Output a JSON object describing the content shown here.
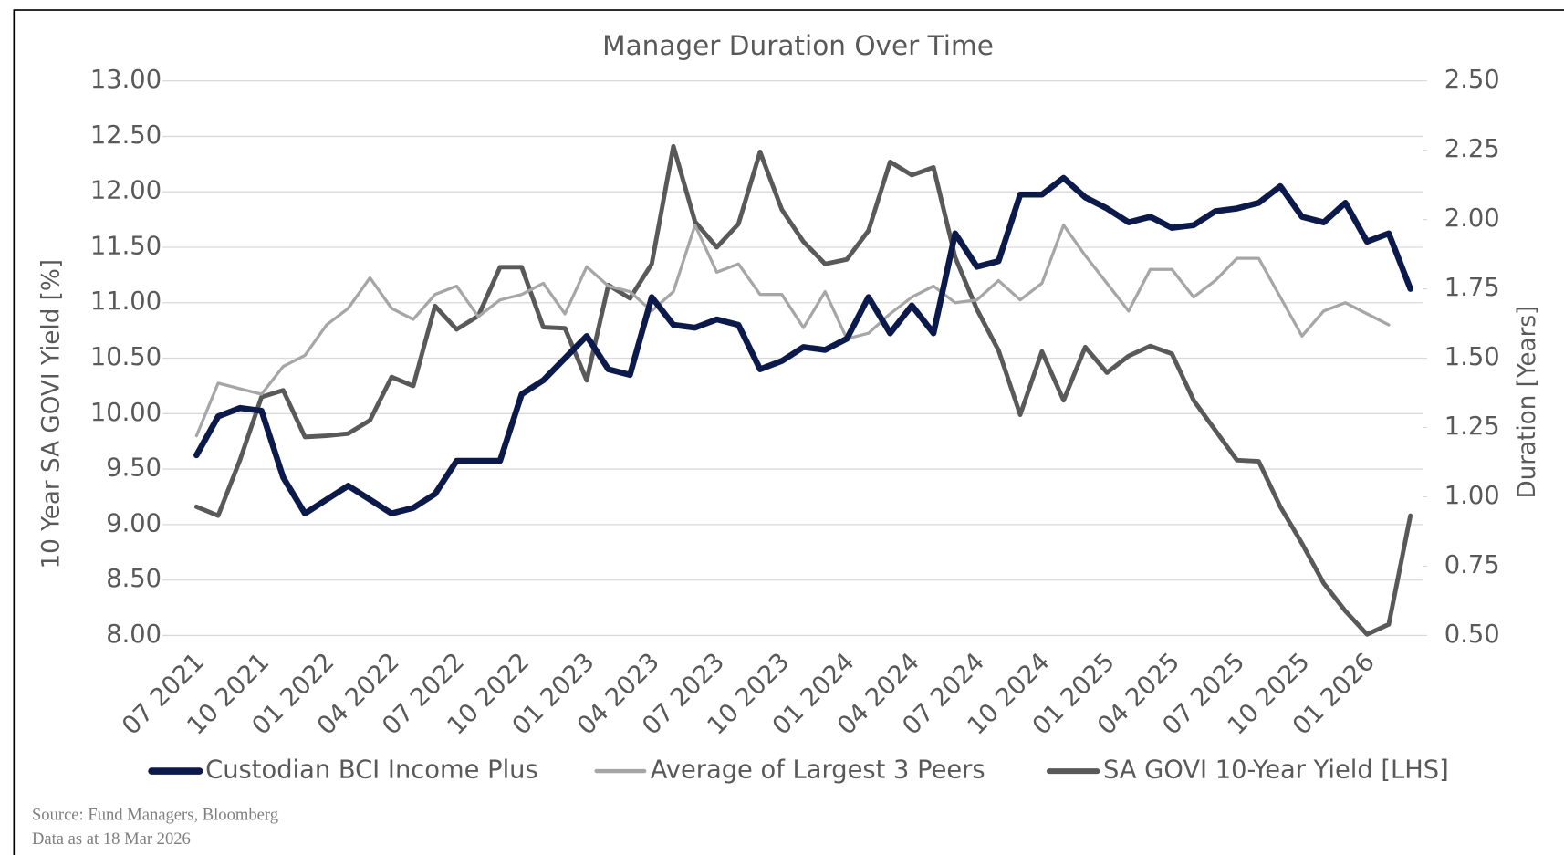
{
  "chart_data": {
    "type": "line",
    "title": "Manager Duration Over Time",
    "y_label": "10 Year SA GOVI Yield [%]",
    "y2_label": "Duration [Years]",
    "categories": [
      "07 2021",
      null,
      null,
      "10 2021",
      null,
      null,
      "01 2022",
      null,
      null,
      "04 2022",
      null,
      null,
      "07 2022",
      null,
      null,
      "10 2022",
      null,
      null,
      "01 2023",
      null,
      null,
      "04 2023",
      null,
      null,
      "07 2023",
      null,
      null,
      "10 2023",
      null,
      null,
      "01 2024",
      null,
      null,
      "04 2024",
      null,
      null,
      "07 2024",
      null,
      null,
      "10 2024",
      null,
      null,
      "01 2025",
      null,
      null,
      "04 2025",
      null,
      null,
      "07 2025",
      null,
      null,
      "10 2025",
      null,
      null,
      "01 2026",
      null,
      null
    ],
    "series": [
      {
        "name": "Custodian BCI Income Plus",
        "color": "#0c1a4b",
        "axis": "y2",
        "values": [
          1.15,
          1.29,
          1.32,
          1.31,
          1.07,
          0.94,
          0.99,
          1.04,
          0.99,
          0.94,
          0.96,
          1.01,
          1.13,
          1.13,
          1.13,
          1.37,
          1.42,
          1.5,
          1.58,
          1.46,
          1.44,
          1.72,
          1.62,
          1.61,
          1.64,
          1.62,
          1.46,
          1.49,
          1.54,
          1.53,
          1.57,
          1.72,
          1.59,
          1.69,
          1.59,
          1.95,
          1.83,
          1.85,
          2.09,
          2.09,
          2.15,
          2.08,
          2.04,
          1.99,
          2.01,
          1.97,
          1.98,
          2.03,
          2.04,
          2.06,
          2.12,
          2.01,
          1.99,
          2.06,
          1.92,
          1.95,
          1.75
        ]
      },
      {
        "name": "Average of Largest 3 Peers",
        "color": "#a6a6a6",
        "axis": "y2",
        "values": [
          1.22,
          1.41,
          1.39,
          1.37,
          1.47,
          1.51,
          1.62,
          1.68,
          1.79,
          1.68,
          1.64,
          1.73,
          1.76,
          1.65,
          1.71,
          1.73,
          1.77,
          1.66,
          1.83,
          1.76,
          1.74,
          1.67,
          1.74,
          1.98,
          1.81,
          1.84,
          1.73,
          1.73,
          1.61,
          1.74,
          1.57,
          1.59,
          1.66,
          1.72,
          1.76,
          1.7,
          1.71,
          1.78,
          1.71,
          1.77,
          1.98,
          1.87,
          1.77,
          1.67,
          1.82,
          1.82,
          1.72,
          1.78,
          1.86,
          1.86,
          1.72,
          1.58,
          1.67,
          1.7,
          1.66,
          1.62,
          null
        ]
      },
      {
        "name": "SA GOVI 10-Year Yield [LHS]",
        "color": "#595959",
        "axis": "y",
        "values": [
          9.16,
          9.08,
          9.58,
          10.15,
          10.21,
          9.79,
          9.8,
          9.82,
          9.94,
          10.33,
          10.25,
          10.97,
          10.76,
          10.88,
          11.32,
          11.32,
          10.78,
          10.77,
          10.3,
          11.16,
          11.04,
          11.35,
          12.41,
          11.73,
          11.5,
          11.71,
          12.36,
          11.84,
          11.55,
          11.35,
          11.39,
          11.65,
          12.27,
          12.15,
          12.22,
          11.41,
          10.94,
          10.57,
          9.99,
          10.56,
          10.12,
          10.6,
          10.37,
          10.52,
          10.61,
          10.54,
          10.12,
          9.85,
          9.58,
          9.57,
          9.16,
          8.83,
          8.47,
          8.22,
          8.01,
          8.1,
          9.08
        ]
      }
    ],
    "ylim": [
      8,
      13
    ],
    "yticks": [
      {
        "value": 8,
        "label": "8.00"
      },
      {
        "value": 8.5,
        "label": "8.50"
      },
      {
        "value": 9,
        "label": "9.00"
      },
      {
        "value": 9.5,
        "label": "9.50"
      },
      {
        "value": 10,
        "label": "10.00"
      },
      {
        "value": 10.5,
        "label": "10.50"
      },
      {
        "value": 11,
        "label": "11.00"
      },
      {
        "value": 11.5,
        "label": "11.50"
      },
      {
        "value": 12,
        "label": "12.00"
      },
      {
        "value": 12.5,
        "label": "12.50"
      },
      {
        "value": 13,
        "label": "13.00"
      }
    ],
    "y2lim": [
      0.5,
      2.5
    ],
    "y2ticks": [
      {
        "value": 0.5,
        "label": "0.50"
      },
      {
        "value": 0.75,
        "label": "0.75"
      },
      {
        "value": 1,
        "label": "1.00"
      },
      {
        "value": 1.25,
        "label": "1.25"
      },
      {
        "value": 1.5,
        "label": "1.50"
      },
      {
        "value": 1.75,
        "label": "1.75"
      },
      {
        "value": 2,
        "label": "2.00"
      },
      {
        "value": 2.25,
        "label": "2.25"
      },
      {
        "value": 2.5,
        "label": "2.50"
      }
    ],
    "grid": true,
    "legend": "bottom",
    "footnotes": [
      "Source: Fund Managers, Bloomberg",
      "Data as at 18 Mar 2026"
    ]
  }
}
